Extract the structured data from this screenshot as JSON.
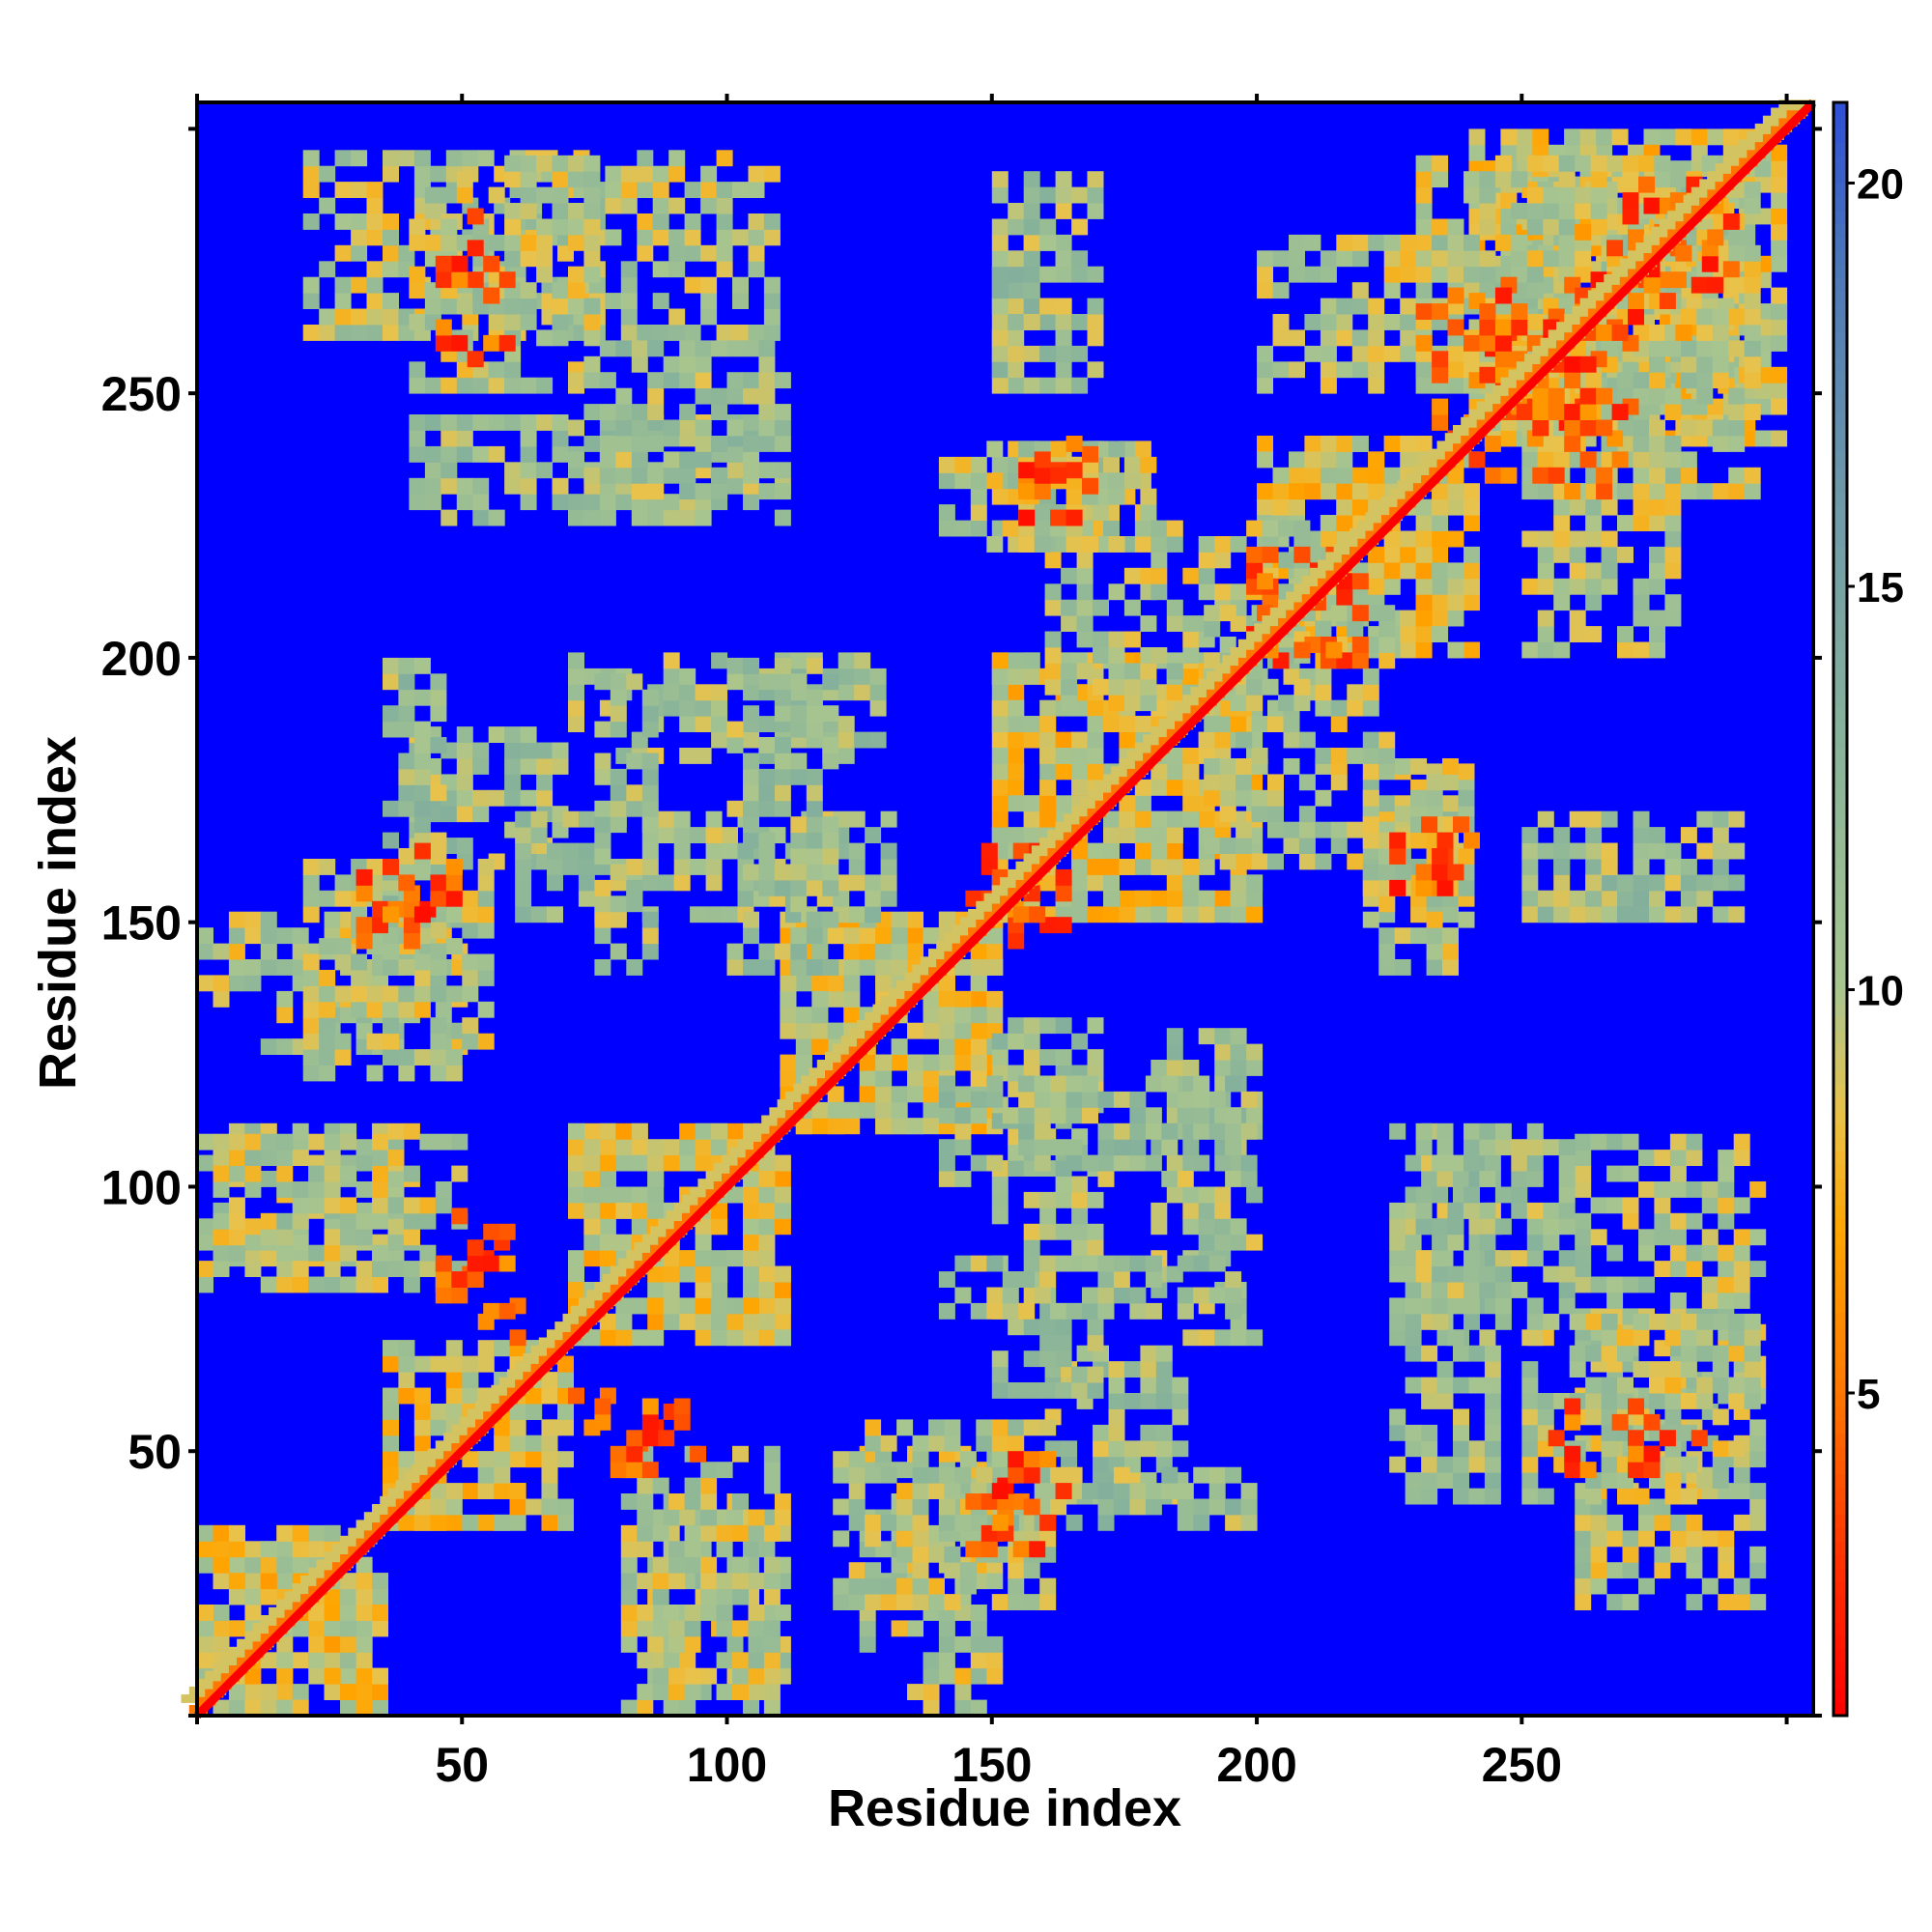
{
  "chart_data": {
    "type": "heatmap",
    "title": "",
    "xlabel": "Residue index",
    "ylabel": "Residue index",
    "xlim": [
      0,
      305
    ],
    "ylim": [
      0,
      305
    ],
    "x_ticks": [
      50,
      100,
      150,
      200,
      250
    ],
    "y_ticks": [
      50,
      100,
      150,
      200,
      250
    ],
    "colorbar": {
      "range": [
        1,
        21
      ],
      "ticks": [
        5,
        10,
        15,
        20
      ],
      "colors": [
        {
          "value": 1,
          "color": "#ff0000"
        },
        {
          "value": 3,
          "color": "#ff3300"
        },
        {
          "value": 5,
          "color": "#ff7700"
        },
        {
          "value": 7,
          "color": "#ffa500"
        },
        {
          "value": 8.5,
          "color": "#e9c24a"
        },
        {
          "value": 10,
          "color": "#a8c58f"
        },
        {
          "value": 13,
          "color": "#88b39a"
        },
        {
          "value": 16,
          "color": "#6f9aa8"
        },
        {
          "value": 19,
          "color": "#4c77b8"
        },
        {
          "value": 21,
          "color": "#2d4fd6"
        }
      ],
      "background_color": "#0000ff"
    },
    "grid": false,
    "diagonal_value": 1,
    "contact_regions": [
      {
        "x": [
          0,
          35
        ],
        "y": [
          0,
          35
        ],
        "value": 9
      },
      {
        "x": [
          35,
          70
        ],
        "y": [
          35,
          70
        ],
        "value": 9
      },
      {
        "x": [
          70,
          110
        ],
        "y": [
          70,
          110
        ],
        "value": 9
      },
      {
        "x": [
          110,
          150
        ],
        "y": [
          110,
          150
        ],
        "value": 9
      },
      {
        "x": [
          150,
          200
        ],
        "y": [
          150,
          200
        ],
        "value": 9
      },
      {
        "x": [
          200,
          240
        ],
        "y": [
          200,
          240
        ],
        "value": 9
      },
      {
        "x": [
          240,
          300
        ],
        "y": [
          240,
          300
        ],
        "value": 9
      },
      {
        "x": [
          0,
          40
        ],
        "y": [
          85,
          110
        ],
        "value": 10
      },
      {
        "x": [
          0,
          50
        ],
        "y": [
          125,
          150
        ],
        "value": 10
      },
      {
        "x": [
          40,
          70
        ],
        "y": [
          160,
          185
        ],
        "value": 11
      },
      {
        "x": [
          20,
          110
        ],
        "y": [
          260,
          295
        ],
        "value": 10
      },
      {
        "x": [
          40,
          110
        ],
        "y": [
          225,
          245
        ],
        "value": 11
      },
      {
        "x": [
          70,
          130
        ],
        "y": [
          180,
          200
        ],
        "value": 11
      },
      {
        "x": [
          60,
          130
        ],
        "y": [
          150,
          170
        ],
        "value": 11
      },
      {
        "x": [
          80,
          110
        ],
        "y": [
          0,
          50
        ],
        "value": 10
      },
      {
        "x": [
          120,
          160
        ],
        "y": [
          20,
          55
        ],
        "value": 10
      },
      {
        "x": [
          140,
          200
        ],
        "y": [
          35,
          45
        ],
        "value": 11
      },
      {
        "x": [
          140,
          200
        ],
        "y": [
          75,
          85
        ],
        "value": 11
      },
      {
        "x": [
          140,
          200
        ],
        "y": [
          100,
          120
        ],
        "value": 11
      },
      {
        "x": [
          150,
          180
        ],
        "y": [
          220,
          240
        ],
        "value": 10
      },
      {
        "x": [
          150,
          165
        ],
        "y": [
          250,
          280
        ],
        "value": 11
      },
      {
        "x": [
          190,
          240
        ],
        "y": [
          160,
          180
        ],
        "value": 10
      },
      {
        "x": [
          220,
          240
        ],
        "y": [
          140,
          170
        ],
        "value": 10
      },
      {
        "x": [
          250,
          290
        ],
        "y": [
          150,
          170
        ],
        "value": 11
      },
      {
        "x": [
          250,
          295
        ],
        "y": [
          40,
          75
        ],
        "value": 10
      },
      {
        "x": [
          200,
          260
        ],
        "y": [
          250,
          280
        ],
        "value": 10
      },
      {
        "x": [
          250,
          295
        ],
        "y": [
          230,
          290
        ],
        "value": 10
      },
      {
        "x": [
          230,
          260
        ],
        "y": [
          70,
          110
        ],
        "value": 11
      },
      {
        "x": [
          180,
          210
        ],
        "y": [
          190,
          225
        ],
        "value": 10
      }
    ],
    "strong_contacts": [
      {
        "x": [
          45,
          60
        ],
        "y": [
          255,
          275
        ],
        "value": 4
      },
      {
        "x": [
          30,
          45
        ],
        "y": [
          145,
          160
        ],
        "value": 4
      },
      {
        "x": [
          50,
          60
        ],
        "y": [
          70,
          90
        ],
        "value": 4
      },
      {
        "x": [
          75,
          95
        ],
        "y": [
          45,
          58
        ],
        "value": 4
      },
      {
        "x": [
          145,
          160
        ],
        "y": [
          150,
          165
        ],
        "value": 4
      },
      {
        "x": [
          150,
          165
        ],
        "y": [
          35,
          48
        ],
        "value": 4
      },
      {
        "x": [
          155,
          170
        ],
        "y": [
          225,
          240
        ],
        "value": 4
      },
      {
        "x": [
          195,
          215
        ],
        "y": [
          200,
          220
        ],
        "value": 4
      },
      {
        "x": [
          230,
          240
        ],
        "y": [
          155,
          165
        ],
        "value": 4
      },
      {
        "x": [
          240,
          270
        ],
        "y": [
          230,
          270
        ],
        "value": 4
      },
      {
        "x": [
          270,
          285
        ],
        "y": [
          45,
          55
        ],
        "value": 4
      },
      {
        "x": [
          270,
          290
        ],
        "y": [
          260,
          285
        ],
        "value": 4
      }
    ]
  }
}
